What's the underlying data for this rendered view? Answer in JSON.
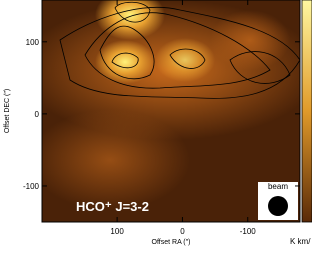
{
  "chart_data": {
    "type": "image",
    "annotation": "HCO⁺ J=3-2",
    "beam_label": "beam",
    "xlabel": "Offset RA (″)",
    "ylabel": "Offset DEC (″)",
    "colorbar_label": "K km/",
    "xlim": [
      215,
      -180
    ],
    "xticks": [
      100,
      0,
      -100
    ],
    "ylim": [
      -150,
      158
    ],
    "yticks": [
      100,
      0,
      -100
    ]
  }
}
